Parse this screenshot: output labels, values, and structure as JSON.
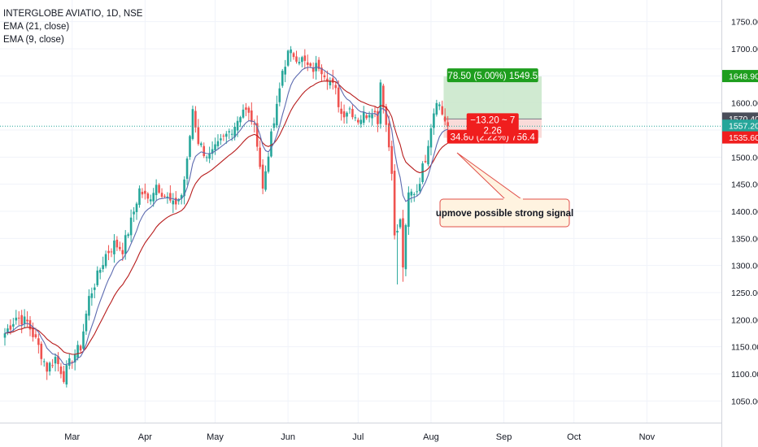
{
  "header": {
    "symbol_line": "INTERGLOBE AVIATIO, 1D, NSE",
    "indicators": [
      "EMA (21, close)",
      "EMA (9, close)"
    ]
  },
  "colors": {
    "up": "#26a69a",
    "down": "#ef5350",
    "ema21": "#b71c1c",
    "ema9": "#5d6bb0",
    "profit": "#c8e6c9",
    "loss": "#f8d7d5",
    "profit_label": "#1e9e1e",
    "loss_label": "#f01e1e",
    "grid": "#f0f3fa",
    "current": "#26a69a",
    "entry": "#787b86"
  },
  "chart_data": {
    "type": "candlestick",
    "x_ticks": [
      "Mar",
      "Apr",
      "May",
      "Jun",
      "Jul",
      "Aug",
      "Sep",
      "Oct",
      "Nov"
    ],
    "y_ticks": [
      "1750.00",
      "1700.00",
      "1650.00",
      "1600.00",
      "1550.00",
      "1500.00",
      "1450.00",
      "1400.00",
      "1350.00",
      "1300.00",
      "1250.00",
      "1200.00",
      "1150.00",
      "1100.00",
      "1050.00"
    ],
    "ylim": [
      1010,
      1790
    ],
    "waypoints": [
      [
        0,
        1175
      ],
      [
        4,
        1205
      ],
      [
        8,
        1195
      ],
      [
        12,
        1150
      ],
      [
        15,
        1110
      ],
      [
        18,
        1130
      ],
      [
        21,
        1095
      ],
      [
        24,
        1130
      ],
      [
        27,
        1150
      ],
      [
        30,
        1240
      ],
      [
        33,
        1280
      ],
      [
        36,
        1320
      ],
      [
        39,
        1340
      ],
      [
        42,
        1330
      ],
      [
        45,
        1380
      ],
      [
        48,
        1440
      ],
      [
        51,
        1420
      ],
      [
        54,
        1450
      ],
      [
        57,
        1430
      ],
      [
        60,
        1410
      ],
      [
        63,
        1430
      ],
      [
        65,
        1490
      ],
      [
        67,
        1590
      ],
      [
        69,
        1530
      ],
      [
        71,
        1510
      ],
      [
        73,
        1500
      ],
      [
        76,
        1520
      ],
      [
        79,
        1540
      ],
      [
        82,
        1560
      ],
      [
        85,
        1590
      ],
      [
        88,
        1570
      ],
      [
        90,
        1530
      ],
      [
        92,
        1440
      ],
      [
        94,
        1510
      ],
      [
        97,
        1590
      ],
      [
        99,
        1660
      ],
      [
        101,
        1690
      ],
      [
        103,
        1690
      ],
      [
        106,
        1680
      ],
      [
        109,
        1660
      ],
      [
        112,
        1670
      ],
      [
        115,
        1650
      ],
      [
        118,
        1620
      ],
      [
        120,
        1580
      ],
      [
        123,
        1590
      ],
      [
        126,
        1570
      ],
      [
        129,
        1580
      ],
      [
        131,
        1590
      ],
      [
        133,
        1570
      ],
      [
        134,
        1640
      ],
      [
        136,
        1560
      ],
      [
        138,
        1480
      ],
      [
        139,
        1350
      ],
      [
        141,
        1380
      ],
      [
        142,
        1300
      ],
      [
        144,
        1430
      ],
      [
        147,
        1440
      ],
      [
        150,
        1500
      ],
      [
        152,
        1560
      ],
      [
        154,
        1610
      ],
      [
        156,
        1580
      ],
      [
        158,
        1557
      ]
    ],
    "series": [
      {
        "name": "EMA (21, close)",
        "period": 21
      },
      {
        "name": "EMA (9, close)",
        "period": 9
      }
    ],
    "position": {
      "type": "long",
      "entry": 1570.4,
      "target": 1648.9,
      "stop": 1535.6,
      "target_label": "78.50 (5.00%) 1549.5",
      "stop_label": "34.80 (2.22%) 756.4",
      "center_label_1": "−13.20 ~ 7",
      "center_label_2": "2.26"
    },
    "price_tags": [
      {
        "value": 1648.9,
        "text": "1648.90",
        "kind": "target"
      },
      {
        "value": 1570.4,
        "text": "1570.40",
        "kind": "entry"
      },
      {
        "value": 1557.2,
        "text": "1557.20",
        "kind": "current"
      },
      {
        "value": 1535.6,
        "text": "1535.60",
        "kind": "stop"
      }
    ],
    "annotation": "upmove possible strong signal",
    "current_price": 1557.2
  }
}
